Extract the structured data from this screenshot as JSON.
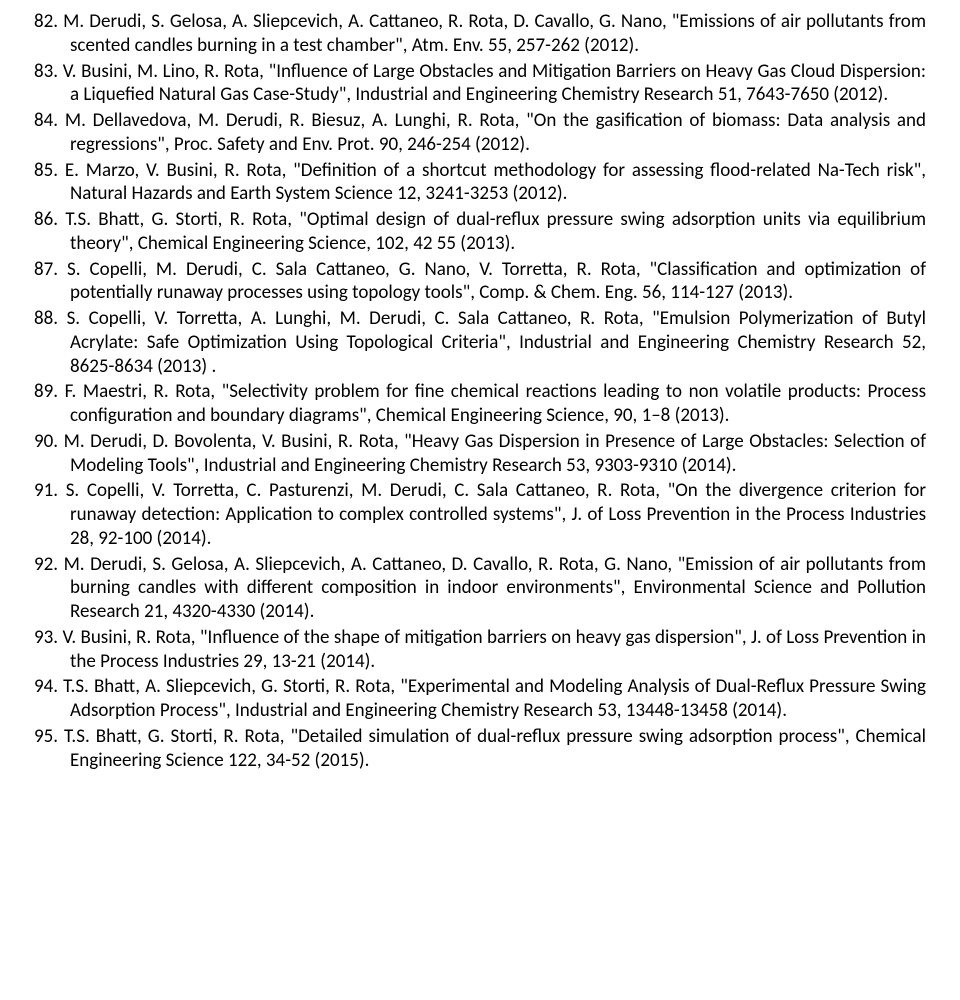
{
  "references": [
    {
      "num": "82.",
      "text": "M. Derudi, S. Gelosa, A. Sliepcevich, A. Cattaneo, R. Rota, D. Cavallo, G. Nano, \"Emissions of air pollutants from scented candles burning in a test chamber\", Atm. Env. 55, 257-262 (2012)."
    },
    {
      "num": "83.",
      "text": "V. Busini, M. Lino, R. Rota, \"Influence of Large Obstacles and Mitigation Barriers on Heavy Gas Cloud Dispersion: a Liquefied Natural Gas Case-Study\", Industrial and Engineering Chemistry Research 51, 7643-7650 (2012)."
    },
    {
      "num": "84.",
      "text": "M. Dellavedova, M. Derudi, R. Biesuz, A. Lunghi, R. Rota, \"On the gasification of biomass: Data analysis and regressions\", Proc. Safety and Env. Prot. 90, 246-254 (2012)."
    },
    {
      "num": "85.",
      "text": "E. Marzo, V. Busini, R. Rota, \"Definition of a shortcut methodology for assessing flood-related Na-Tech risk\", Natural Hazards and Earth System Science 12, 3241-3253 (2012)."
    },
    {
      "num": "86.",
      "text": "T.S. Bhatt, G. Storti, R. Rota, \"Optimal design of dual-reflux pressure swing adsorption units via equilibrium theory\", Chemical Engineering Science, 102, 42 55 (2013)."
    },
    {
      "num": "87.",
      "text": "S. Copelli, M. Derudi, C. Sala Cattaneo, G. Nano, V. Torretta, R. Rota, \"Classification and optimization of potentially runaway processes using topology tools\", Comp. & Chem. Eng. 56, 114-127 (2013)."
    },
    {
      "num": "88.",
      "text": "S. Copelli, V. Torretta, A. Lunghi, M. Derudi, C. Sala Cattaneo, R. Rota, \"Emulsion Polymerization of Butyl Acrylate: Safe Optimization Using Topological Criteria\", Industrial and Engineering Chemistry Research 52, 8625-8634 (2013) ."
    },
    {
      "num": "89.",
      "text": "F. Maestri, R. Rota, \"Selectivity problem for fine chemical reactions leading to non volatile products: Process configuration and boundary diagrams\", Chemical Engineering Science, 90, 1–8 (2013)."
    },
    {
      "num": "90.",
      "text": "M. Derudi, D. Bovolenta, V. Busini, R. Rota, \"Heavy Gas Dispersion in Presence of Large Obstacles: Selection of Modeling Tools\", Industrial and Engineering Chemistry Research 53, 9303-9310 (2014)."
    },
    {
      "num": "91.",
      "text": "S. Copelli, V. Torretta, C. Pasturenzi, M. Derudi, C. Sala Cattaneo, R. Rota, \"On the divergence criterion for runaway detection: Application to complex controlled systems\", J. of Loss Prevention in the Process Industries 28, 92-100 (2014)."
    },
    {
      "num": "92.",
      "text": "M. Derudi, S. Gelosa, A. Sliepcevich, A. Cattaneo, D. Cavallo, R. Rota, G. Nano, \"Emission of air pollutants from burning candles with different composition in indoor environments\", Environmental Science and Pollution Research 21, 4320-4330 (2014)."
    },
    {
      "num": "93.",
      "text": "V. Busini, R. Rota, \"Influence of the shape of mitigation barriers on heavy gas dispersion\", J. of Loss Prevention in the Process Industries 29, 13-21 (2014)."
    },
    {
      "num": "94.",
      "text": "T.S. Bhatt, A. Sliepcevich, G. Storti, R. Rota, \"Experimental and Modeling Analysis of Dual-Reflux Pressure Swing Adsorption Process\", Industrial and Engineering Chemistry Research 53, 13448-13458 (2014)."
    },
    {
      "num": "95.",
      "text": "T.S. Bhatt, G. Storti, R. Rota, \"Detailed simulation of dual-reflux pressure swing adsorption process\", Chemical Engineering Science 122, 34-52 (2015)."
    }
  ]
}
